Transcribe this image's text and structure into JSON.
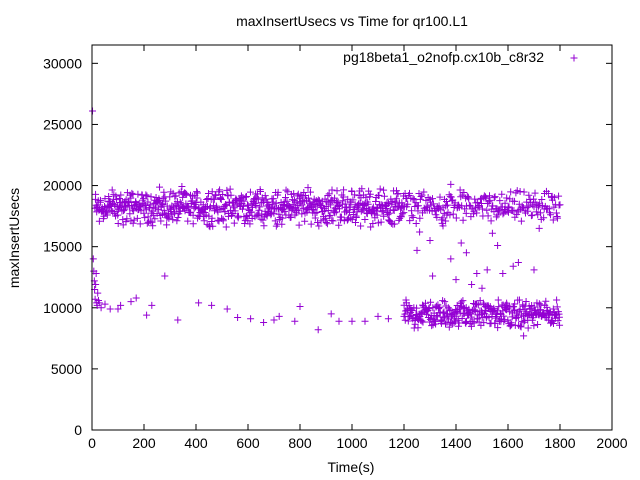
{
  "chart_data": {
    "type": "scatter",
    "title": "maxInsertUsecs vs Time for qr100.L1",
    "xlabel": "Time(s)",
    "ylabel": "maxInsertUsecs",
    "xlim": [
      0,
      2000
    ],
    "ylim": [
      0,
      31500
    ],
    "xticks": [
      0,
      200,
      400,
      600,
      800,
      1000,
      1200,
      1400,
      1600,
      1800,
      2000
    ],
    "yticks": [
      0,
      5000,
      10000,
      15000,
      20000,
      25000,
      30000
    ],
    "xtick_labels": [
      "0",
      "200",
      "400",
      "600",
      "800",
      "1000",
      "1200",
      "1400",
      "1600",
      "1800",
      "2000"
    ],
    "ytick_labels": [
      "0",
      "5000",
      "10000",
      "15000",
      "20000",
      "25000",
      "30000"
    ],
    "grid": false,
    "legend_position": "top-right",
    "series": [
      {
        "name": "pg18beta1_o2nofp.cx10b_c8r32",
        "color": "#9400d3",
        "marker": "plus",
        "points": [
          [
            2,
            26100
          ],
          [
            5,
            14000
          ],
          [
            7,
            13000
          ],
          [
            9,
            12200
          ],
          [
            10,
            11500
          ],
          [
            12,
            10700
          ],
          [
            14,
            11900
          ],
          [
            16,
            12800
          ],
          [
            18,
            10400
          ],
          [
            20,
            10200
          ],
          [
            22,
            11200
          ],
          [
            25,
            10600
          ],
          [
            28,
            10400
          ],
          [
            35,
            10000
          ],
          [
            50,
            10300
          ],
          [
            70,
            9900
          ],
          [
            100,
            9900
          ],
          [
            110,
            10200
          ],
          [
            150,
            10500
          ],
          [
            170,
            10800
          ],
          [
            210,
            9400
          ],
          [
            230,
            10200
          ],
          [
            280,
            12600
          ],
          [
            330,
            9000
          ],
          [
            410,
            10400
          ],
          [
            460,
            10200
          ],
          [
            520,
            9900
          ],
          [
            560,
            9200
          ],
          [
            610,
            9100
          ],
          [
            660,
            8800
          ],
          [
            700,
            9000
          ],
          [
            720,
            9300
          ],
          [
            780,
            8900
          ],
          [
            800,
            10100
          ],
          [
            870,
            8200
          ],
          [
            920,
            9500
          ],
          [
            950,
            8900
          ],
          [
            1000,
            8900
          ],
          [
            1050,
            8900
          ],
          [
            1100,
            9300
          ],
          [
            1140,
            9100
          ],
          [
            1200,
            9300
          ],
          [
            1250,
            14700
          ],
          [
            1260,
            16200
          ],
          [
            1300,
            15500
          ],
          [
            1310,
            12600
          ],
          [
            1350,
            16700
          ],
          [
            1360,
            17100
          ],
          [
            1380,
            14000
          ],
          [
            1400,
            12300
          ],
          [
            1420,
            15300
          ],
          [
            1440,
            14500
          ],
          [
            1460,
            11900
          ],
          [
            1480,
            12800
          ],
          [
            1500,
            11600
          ],
          [
            1520,
            13100
          ],
          [
            1540,
            16100
          ],
          [
            1560,
            15100
          ],
          [
            1580,
            12800
          ],
          [
            1620,
            13400
          ],
          [
            1640,
            13700
          ],
          [
            1700,
            13100
          ],
          [
            1720,
            16500
          ],
          [
            1660,
            7700
          ],
          [
            1380,
            20100
          ]
        ],
        "bands": [
          {
            "x_start": 10,
            "x_end": 1200,
            "y_low": 16500,
            "y_high": 20000,
            "count": 700
          },
          {
            "x_start": 1200,
            "x_end": 1800,
            "y_low": 16800,
            "y_high": 19700,
            "count": 220
          },
          {
            "x_start": 1200,
            "x_end": 1800,
            "y_low": 8200,
            "y_high": 10800,
            "count": 330
          }
        ]
      }
    ]
  }
}
